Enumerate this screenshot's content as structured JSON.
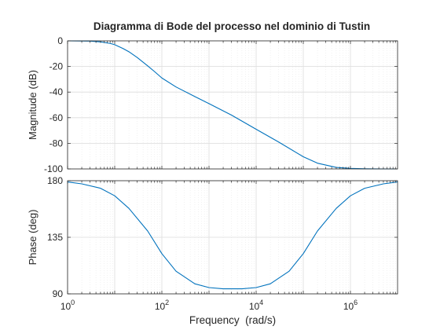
{
  "chart_data": [
    {
      "type": "line",
      "title": "Diagramma di Bode del processo nel dominio di Tustin",
      "ylabel": "Magnitude (dB)",
      "xlabel": "",
      "xscale": "log",
      "xlim": [
        1,
        10000000
      ],
      "ylim": [
        -100,
        0
      ],
      "yticks": [
        0,
        -20,
        -40,
        -60,
        -80,
        -100
      ],
      "ytick_labels": [
        "0",
        "-20",
        "-40",
        "-60",
        "-80",
        "-100"
      ],
      "grid": true,
      "series_color": "#0072bd",
      "series": [
        {
          "x": [
            1,
            3,
            5,
            8,
            10,
            15,
            20,
            30,
            50,
            70,
            100,
            200,
            500,
            1000,
            3000,
            10000,
            30000,
            100000,
            200000,
            500000,
            1000000,
            2000000,
            5000000,
            10000000
          ],
          "values": [
            0,
            -0.2,
            -0.8,
            -2,
            -3,
            -6,
            -8.5,
            -13,
            -19.5,
            -24,
            -29,
            -36,
            -43.5,
            -49,
            -58,
            -69,
            -79,
            -90.5,
            -95.5,
            -98.8,
            -99.6,
            -99.9,
            -100,
            -100
          ]
        }
      ]
    },
    {
      "type": "line",
      "title": "",
      "ylabel": "Phase (deg)",
      "xlabel": "Frequency  (rad/s)",
      "xscale": "log",
      "xlim": [
        1,
        10000000
      ],
      "ylim": [
        90,
        180
      ],
      "yticks": [
        180,
        135,
        90
      ],
      "ytick_labels": [
        "180",
        "135",
        "90"
      ],
      "xtick_labels": [
        "10^0",
        "10^2",
        "10^4",
        "10^6"
      ],
      "xtick_values": [
        1,
        100,
        10000,
        1000000
      ],
      "grid": true,
      "series_color": "#0072bd",
      "series": [
        {
          "x": [
            1,
            2,
            5,
            10,
            20,
            50,
            100,
            200,
            500,
            1000,
            2000,
            5000,
            10000,
            20000,
            50000,
            100000,
            200000,
            500000,
            1000000,
            2000000,
            5000000,
            10000000
          ],
          "values": [
            179,
            177.5,
            174,
            168,
            158,
            140,
            122,
            108,
            98,
            95,
            94,
            94,
            95,
            98,
            108,
            122,
            140,
            158,
            168,
            174,
            177.5,
            179
          ]
        }
      ]
    }
  ]
}
